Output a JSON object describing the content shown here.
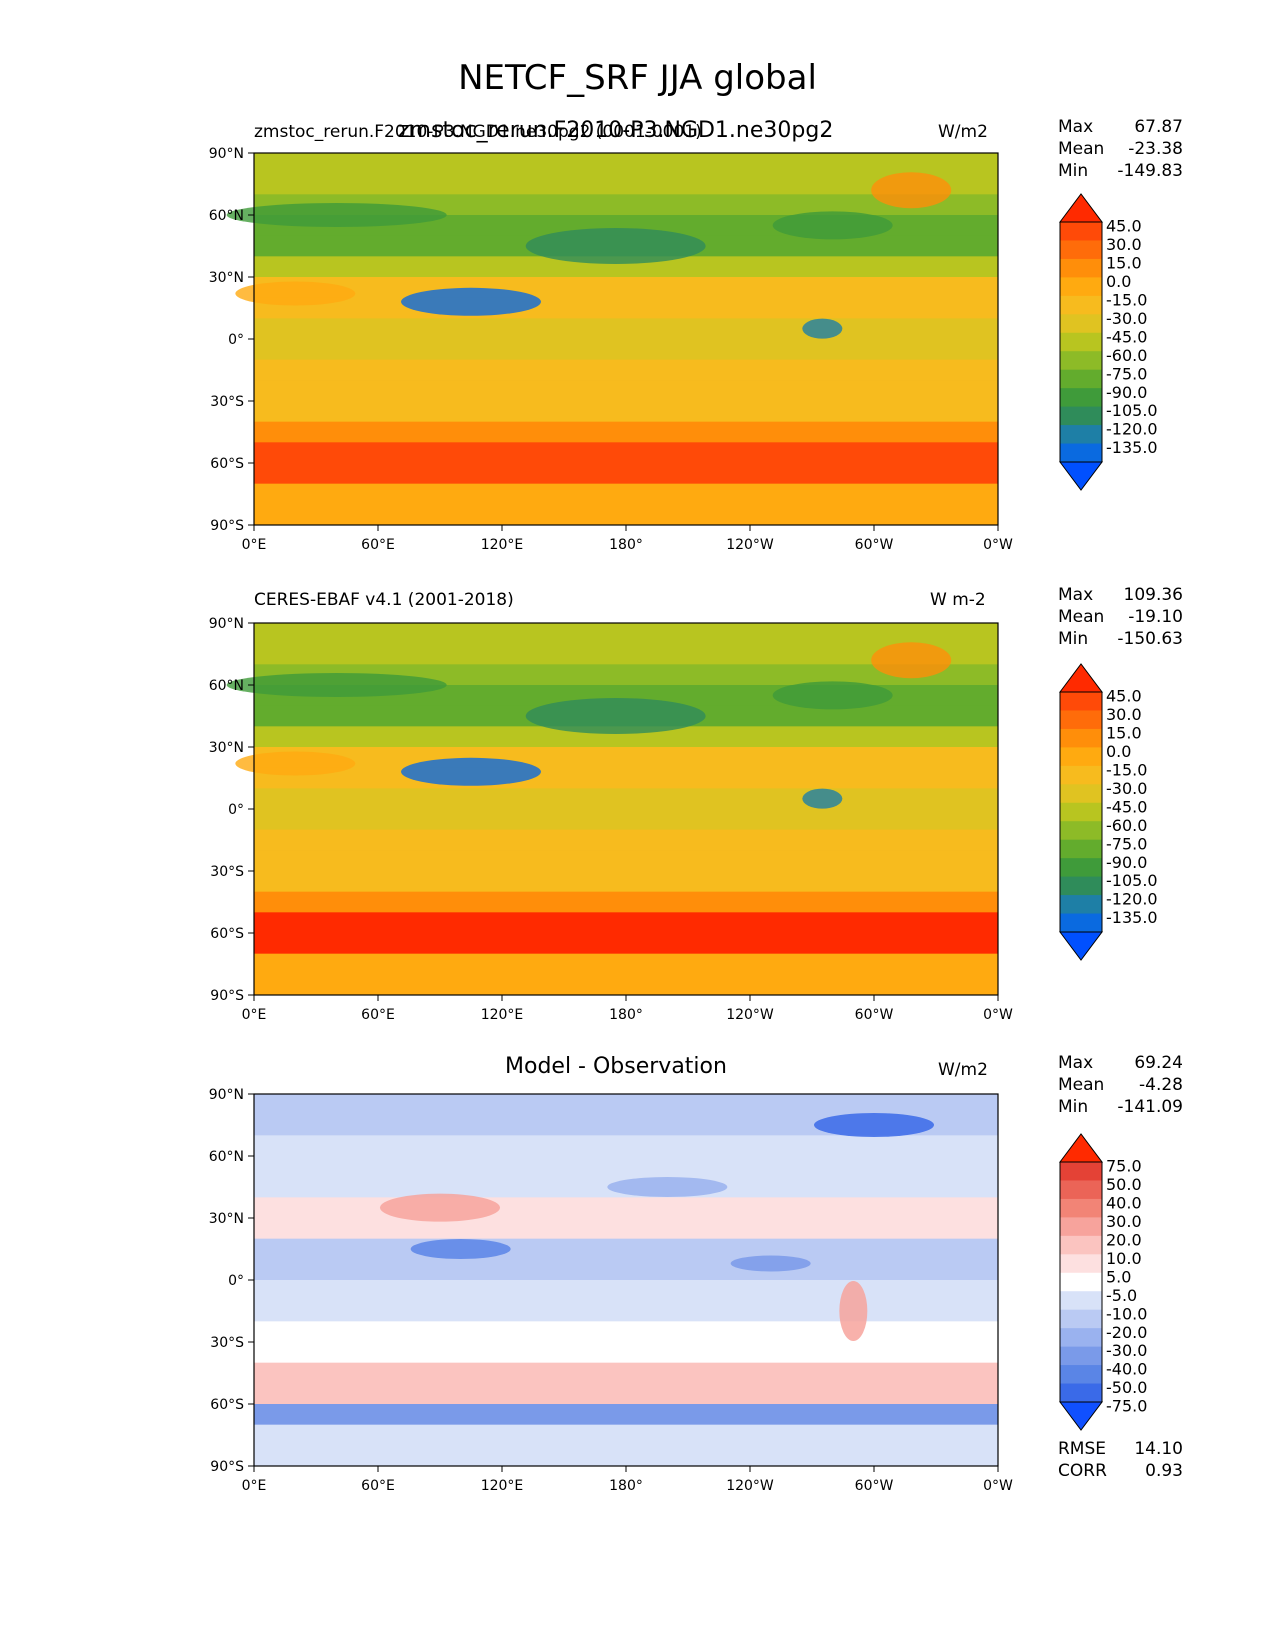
{
  "figure": {
    "title": "NETCF_SRF JJA global"
  },
  "colors": {
    "levels_main": [
      "#0050ff",
      "#0a6ae0",
      "#1e7fa6",
      "#2f8c5a",
      "#3f9b3a",
      "#63ac2d",
      "#8dbb27",
      "#b8c520",
      "#e0c321",
      "#f7bb1e",
      "#ffaa10",
      "#ff8e0a",
      "#ff6c0a",
      "#ff4a08",
      "#ff2a00"
    ],
    "levels_diff": [
      "#1050ff",
      "#3a6ae8",
      "#5a85e6",
      "#7a9ae9",
      "#9ab2ef",
      "#bacaf3",
      "#d8e2f8",
      "#ffffff",
      "#fde0e0",
      "#fbc4c0",
      "#f7a39c",
      "#f28476",
      "#eb6457",
      "#e44236",
      "#ff2a00"
    ]
  },
  "panels": [
    {
      "id": "test",
      "left_label": "zmstoc_rerun.F2010-P3.NGD1.ne30pg2 (0001-0001)",
      "center_label": "zmstoc_rerun.F2010-P3.NGD1.ne30pg2",
      "unit": "W/m2",
      "stats": [
        {
          "label": "Max",
          "value": "67.87"
        },
        {
          "label": "Mean",
          "value": "-23.38"
        },
        {
          "label": "Min",
          "value": "-149.83"
        }
      ],
      "colorbar": [
        "45.0",
        "30.0",
        "15.0",
        "0.0",
        "-15.0",
        "-30.0",
        "-45.0",
        "-60.0",
        "-75.0",
        "-90.0",
        "-105.0",
        "-120.0",
        "-135.0"
      ]
    },
    {
      "id": "ref",
      "left_label": "CERES-EBAF v4.1 (2001-2018)",
      "center_label": "",
      "unit": "W m-2",
      "stats": [
        {
          "label": "Max",
          "value": "109.36"
        },
        {
          "label": "Mean",
          "value": "-19.10"
        },
        {
          "label": "Min",
          "value": "-150.63"
        }
      ],
      "colorbar": [
        "45.0",
        "30.0",
        "15.0",
        "0.0",
        "-15.0",
        "-30.0",
        "-45.0",
        "-60.0",
        "-75.0",
        "-90.0",
        "-105.0",
        "-120.0",
        "-135.0"
      ]
    },
    {
      "id": "diff",
      "left_label": "",
      "center_label": "Model - Observation",
      "unit": "W/m2",
      "stats": [
        {
          "label": "Max",
          "value": "69.24"
        },
        {
          "label": "Mean",
          "value": "-4.28"
        },
        {
          "label": "Min",
          "value": "-141.09"
        }
      ],
      "extra_stats": [
        {
          "label": "RMSE",
          "value": "14.10"
        },
        {
          "label": "CORR",
          "value": "0.93"
        }
      ],
      "colorbar": [
        "75.0",
        "50.0",
        "40.0",
        "30.0",
        "20.0",
        "10.0",
        "5.0",
        "-5.0",
        "-10.0",
        "-20.0",
        "-30.0",
        "-40.0",
        "-50.0",
        "-75.0"
      ]
    }
  ],
  "chart_data": [
    {
      "type": "heatmap",
      "panel": "test",
      "x_tick_labels": [
        "0°E",
        "60°E",
        "120°E",
        "180°",
        "120°W",
        "60°W",
        "0°W"
      ],
      "y_tick_labels": [
        "90°N",
        "60°N",
        "30°N",
        "0°",
        "30°S",
        "60°S",
        "90°S"
      ],
      "x_range": [
        0,
        360
      ],
      "y_range": [
        -90,
        90
      ],
      "colorbar_levels": [
        45.0,
        30.0,
        15.0,
        0.0,
        -15.0,
        -30.0,
        -45.0,
        -60.0,
        -75.0,
        -90.0,
        -105.0,
        -120.0,
        -135.0
      ]
    },
    {
      "type": "heatmap",
      "panel": "ref",
      "x_tick_labels": [
        "0°E",
        "60°E",
        "120°E",
        "180°",
        "120°W",
        "60°W",
        "0°W"
      ],
      "y_tick_labels": [
        "90°N",
        "60°N",
        "30°N",
        "0°",
        "30°S",
        "60°S",
        "90°S"
      ],
      "x_range": [
        0,
        360
      ],
      "y_range": [
        -90,
        90
      ],
      "colorbar_levels": [
        45.0,
        30.0,
        15.0,
        0.0,
        -15.0,
        -30.0,
        -45.0,
        -60.0,
        -75.0,
        -90.0,
        -105.0,
        -120.0,
        -135.0
      ]
    },
    {
      "type": "heatmap",
      "panel": "diff",
      "x_tick_labels": [
        "0°E",
        "60°E",
        "120°E",
        "180°",
        "120°W",
        "60°W",
        "0°W"
      ],
      "y_tick_labels": [
        "90°N",
        "60°N",
        "30°N",
        "0°",
        "30°S",
        "60°S",
        "90°S"
      ],
      "x_range": [
        0,
        360
      ],
      "y_range": [
        -90,
        90
      ],
      "colorbar_levels": [
        75.0,
        50.0,
        40.0,
        30.0,
        20.0,
        10.0,
        5.0,
        -5.0,
        -10.0,
        -20.0,
        -30.0,
        -40.0,
        -50.0,
        -75.0
      ]
    }
  ]
}
